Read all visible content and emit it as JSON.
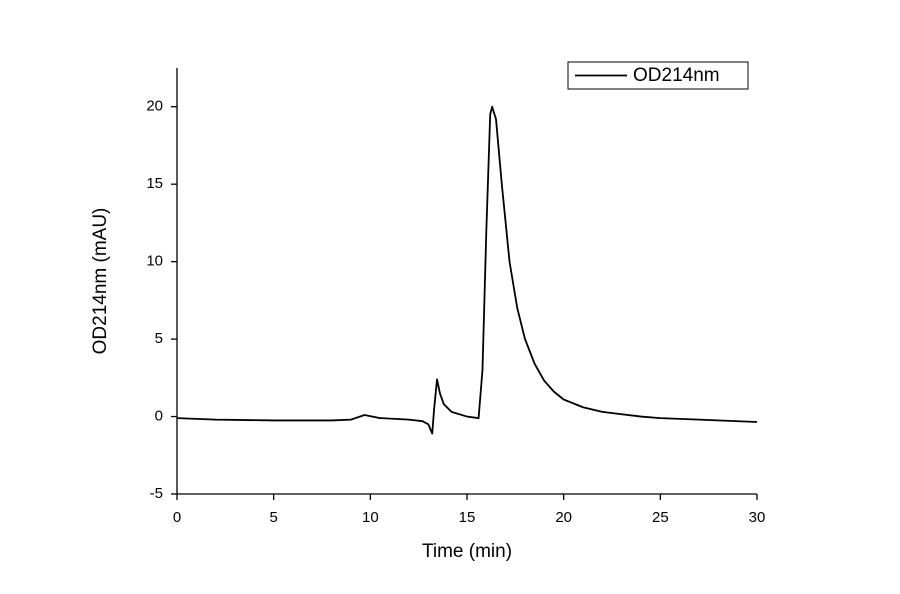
{
  "chart_data": {
    "type": "line",
    "x_label": "Time (min)",
    "y_label": "OD214nm (mAU)",
    "x": [
      0,
      2,
      5,
      8,
      9,
      9.7,
      10.5,
      12,
      12.7,
      13.0,
      13.2,
      13.3,
      13.45,
      13.6,
      13.8,
      14.2,
      15,
      15.6,
      15.8,
      16.0,
      16.2,
      16.3,
      16.5,
      16.8,
      17.2,
      17.6,
      18,
      18.5,
      19,
      19.5,
      20,
      21,
      22,
      23,
      24,
      25,
      27,
      30
    ],
    "series": [
      {
        "name": "OD214nm",
        "color": "#000000",
        "values": [
          -0.1,
          -0.2,
          -0.25,
          -0.25,
          -0.2,
          0.1,
          -0.1,
          -0.2,
          -0.3,
          -0.5,
          -1.1,
          0.5,
          2.4,
          1.5,
          0.8,
          0.3,
          0.0,
          -0.1,
          3,
          12,
          19.5,
          20,
          19.2,
          15,
          10,
          7,
          5,
          3.4,
          2.3,
          1.6,
          1.1,
          0.6,
          0.3,
          0.15,
          0.0,
          -0.1,
          -0.2,
          -0.35
        ]
      }
    ],
    "xlim": [
      0,
      30
    ],
    "xticks": [
      0,
      5,
      10,
      15,
      20,
      25,
      30
    ],
    "ylim": [
      -5,
      22.5
    ],
    "yticks": [
      -5,
      0,
      5,
      10,
      15,
      20
    ],
    "grid": false,
    "legend": "upper right"
  }
}
